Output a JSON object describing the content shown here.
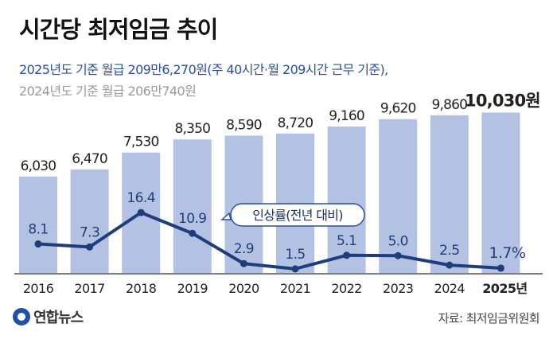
{
  "title": "시간당 최저임금 추이",
  "subtitle_line1": "2025년도 기준 월급 209만6,270원(주 40시간·월 209시간 근무 기준),",
  "subtitle_line2": "2024년도 기준 월급 206만740원",
  "source": "자료: 최저임금위원회",
  "logo_text": "연합뉴스",
  "colors": {
    "bar": "#b3c2e3",
    "bar_highlight": "#b3c2e3",
    "line": "#1f3d7a",
    "axis_text": "#222222",
    "callout_border": "#2b4f9e"
  },
  "chart_data": {
    "type": "bar",
    "categories": [
      "2016",
      "2017",
      "2018",
      "2019",
      "2020",
      "2021",
      "2022",
      "2023",
      "2024",
      "2025년"
    ],
    "series": [
      {
        "values": [
          6030,
          6470,
          7530,
          8350,
          8590,
          8720,
          9160,
          9620,
          9860,
          10030
        ],
        "labels": [
          "6,030",
          "6,470",
          "7,530",
          "8,350",
          "8,590",
          "8,720",
          "9,160",
          "9,620",
          "9,860",
          "10,030원"
        ]
      },
      {
        "name": "인상률(전년 대비)",
        "type": "line",
        "values": [
          8.1,
          7.3,
          16.4,
          10.9,
          2.9,
          1.5,
          5.1,
          5.0,
          2.5,
          1.7
        ],
        "labels": [
          "8.1",
          "7.3",
          "16.4",
          "10.9",
          "2.9",
          "1.5",
          "5.1",
          "5.0",
          "2.5",
          "1.7%"
        ]
      }
    ],
    "bar_ylim": [
      0,
      10700
    ],
    "line_ylim": [
      0,
      20
    ],
    "grid": false,
    "highlight_index": 9
  }
}
